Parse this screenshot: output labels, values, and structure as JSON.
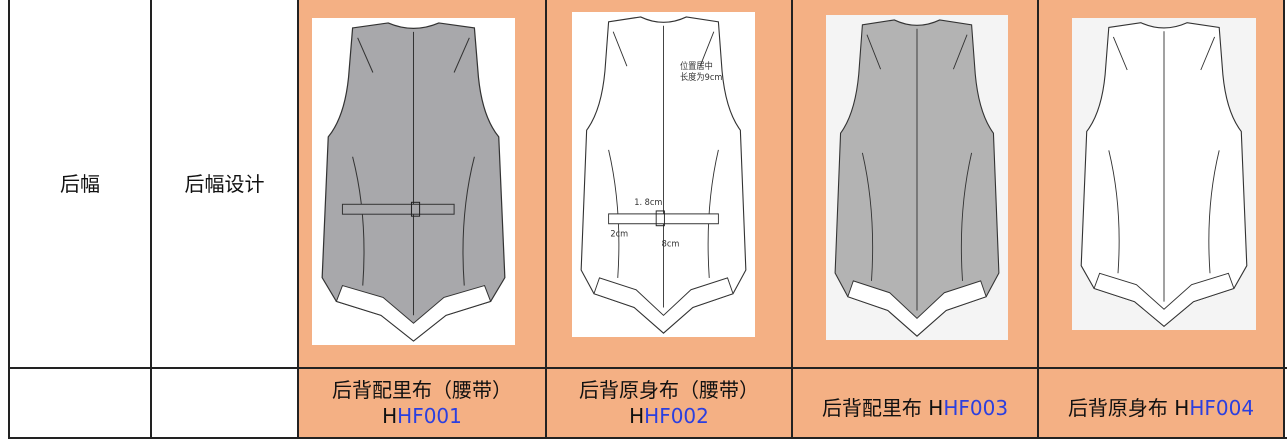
{
  "table": {
    "part": "后幅",
    "design": "后幅设计",
    "image_notes": [
      "位置居中",
      "长度为9cm",
      "1. 8cm",
      "2cm",
      "8cm"
    ],
    "captions": [
      {
        "name": "后背配里布（腰带）",
        "prefix": "H",
        "code": "HF001"
      },
      {
        "name": "后背原身布（腰带）",
        "prefix": "H",
        "code": "HF002"
      },
      {
        "name": "后背配里布",
        "prefix": "H",
        "code": "HF003"
      },
      {
        "name": "后背原身布",
        "prefix": "H",
        "code": "HF004"
      }
    ]
  }
}
